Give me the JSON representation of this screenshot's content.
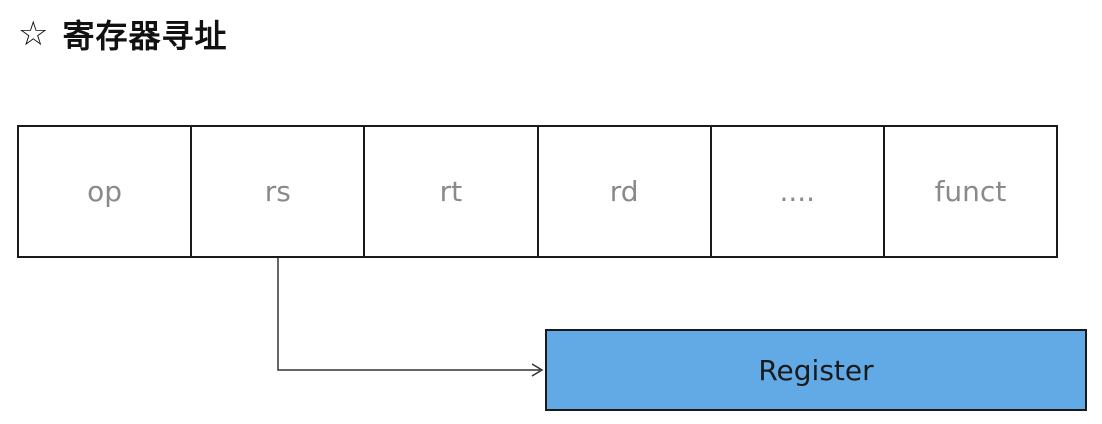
{
  "title": {
    "icon": "star-outline-icon",
    "text": "寄存器寻址"
  },
  "fields": [
    {
      "id": "op",
      "label": "op"
    },
    {
      "id": "rs",
      "label": "rs"
    },
    {
      "id": "rt",
      "label": "rt"
    },
    {
      "id": "rd",
      "label": "rd"
    },
    {
      "id": "dots",
      "label": "...."
    },
    {
      "id": "funct",
      "label": "funct"
    }
  ],
  "register": {
    "label": "Register",
    "fill_color": "#62aae5"
  }
}
